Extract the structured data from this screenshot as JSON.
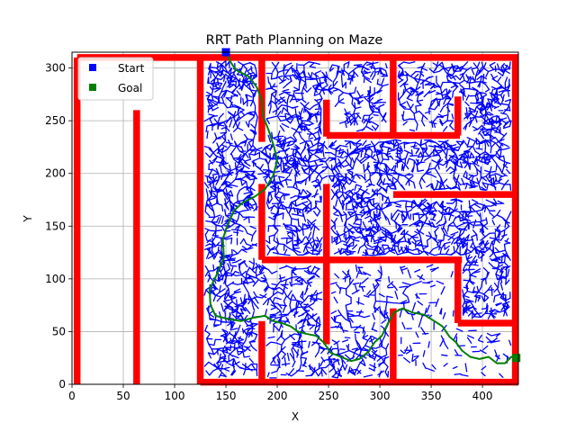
{
  "chart_data": {
    "type": "scatter",
    "title": "RRT Path Planning on Maze",
    "xlabel": "X",
    "ylabel": "Y",
    "xlim": [
      0,
      435
    ],
    "ylim": [
      0,
      315
    ],
    "xticks": [
      0,
      50,
      100,
      150,
      200,
      250,
      300,
      350,
      400
    ],
    "yticks": [
      0,
      50,
      100,
      150,
      200,
      250,
      300
    ],
    "grid": true,
    "legend_position": "top-left",
    "legend": [
      {
        "label": "Start",
        "color": "#0000ff",
        "marker": "square"
      },
      {
        "label": "Goal",
        "color": "#008000",
        "marker": "square"
      }
    ],
    "start": [
      150,
      315
    ],
    "goal": [
      433,
      25
    ],
    "colors": {
      "walls": "#ff0000",
      "tree": "#0000ff",
      "path": "#008000",
      "grid": "#b0b0b0"
    },
    "walls": [
      {
        "x": [
          5,
          5
        ],
        "y": [
          0,
          310
        ]
      },
      {
        "x": [
          5,
          125
        ],
        "y": [
          310,
          310
        ]
      },
      {
        "x": [
          125,
          125
        ],
        "y": [
          0,
          310
        ]
      },
      {
        "x": [
          63,
          63
        ],
        "y": [
          0,
          260
        ]
      },
      {
        "x": [
          125,
          435
        ],
        "y": [
          310,
          310
        ]
      },
      {
        "x": [
          432,
          432
        ],
        "y": [
          0,
          310
        ]
      },
      {
        "x": [
          125,
          435
        ],
        "y": [
          2,
          2
        ]
      },
      {
        "x": [
          185,
          185
        ],
        "y": [
          230,
          310
        ]
      },
      {
        "x": [
          185,
          185
        ],
        "y": [
          118,
          190
        ]
      },
      {
        "x": [
          185,
          185
        ],
        "y": [
          0,
          60
        ]
      },
      {
        "x": [
          185,
          380
        ],
        "y": [
          118,
          118
        ]
      },
      {
        "x": [
          248,
          248
        ],
        "y": [
          38,
          190
        ]
      },
      {
        "x": [
          248,
          248
        ],
        "y": [
          235,
          270
        ]
      },
      {
        "x": [
          248,
          378
        ],
        "y": [
          236,
          236
        ]
      },
      {
        "x": [
          313,
          313
        ],
        "y": [
          236,
          310
        ]
      },
      {
        "x": [
          376,
          376
        ],
        "y": [
          236,
          273
        ]
      },
      {
        "x": [
          313,
          313
        ],
        "y": [
          0,
          72
        ]
      },
      {
        "x": [
          376,
          376
        ],
        "y": [
          58,
          118
        ]
      },
      {
        "x": [
          376,
          435
        ],
        "y": [
          58,
          58
        ]
      },
      {
        "x": [
          313,
          435
        ],
        "y": [
          180,
          180
        ]
      }
    ],
    "path": [
      [
        150,
        315
      ],
      [
        155,
        305
      ],
      [
        160,
        298
      ],
      [
        172,
        292
      ],
      [
        180,
        282
      ],
      [
        185,
        270
      ],
      [
        186,
        255
      ],
      [
        192,
        240
      ],
      [
        197,
        225
      ],
      [
        200,
        212
      ],
      [
        196,
        198
      ],
      [
        188,
        185
      ],
      [
        178,
        178
      ],
      [
        166,
        172
      ],
      [
        158,
        165
      ],
      [
        152,
        152
      ],
      [
        147,
        138
      ],
      [
        148,
        120
      ],
      [
        141,
        104
      ],
      [
        134,
        90
      ],
      [
        135,
        75
      ],
      [
        140,
        65
      ],
      [
        152,
        62
      ],
      [
        165,
        60
      ],
      [
        176,
        63
      ],
      [
        188,
        65
      ],
      [
        196,
        60
      ],
      [
        205,
        58
      ],
      [
        213,
        55
      ],
      [
        220,
        50
      ],
      [
        228,
        48
      ],
      [
        238,
        46
      ],
      [
        245,
        40
      ],
      [
        252,
        30
      ],
      [
        262,
        26
      ],
      [
        272,
        22
      ],
      [
        280,
        24
      ],
      [
        289,
        31
      ],
      [
        295,
        40
      ],
      [
        302,
        46
      ],
      [
        308,
        58
      ],
      [
        314,
        68
      ],
      [
        322,
        72
      ],
      [
        332,
        68
      ],
      [
        343,
        66
      ],
      [
        353,
        60
      ],
      [
        361,
        55
      ],
      [
        368,
        45
      ],
      [
        374,
        40
      ],
      [
        380,
        32
      ],
      [
        388,
        26
      ],
      [
        397,
        24
      ],
      [
        406,
        26
      ],
      [
        414,
        20
      ],
      [
        422,
        20
      ],
      [
        428,
        26
      ],
      [
        433,
        25
      ]
    ]
  }
}
